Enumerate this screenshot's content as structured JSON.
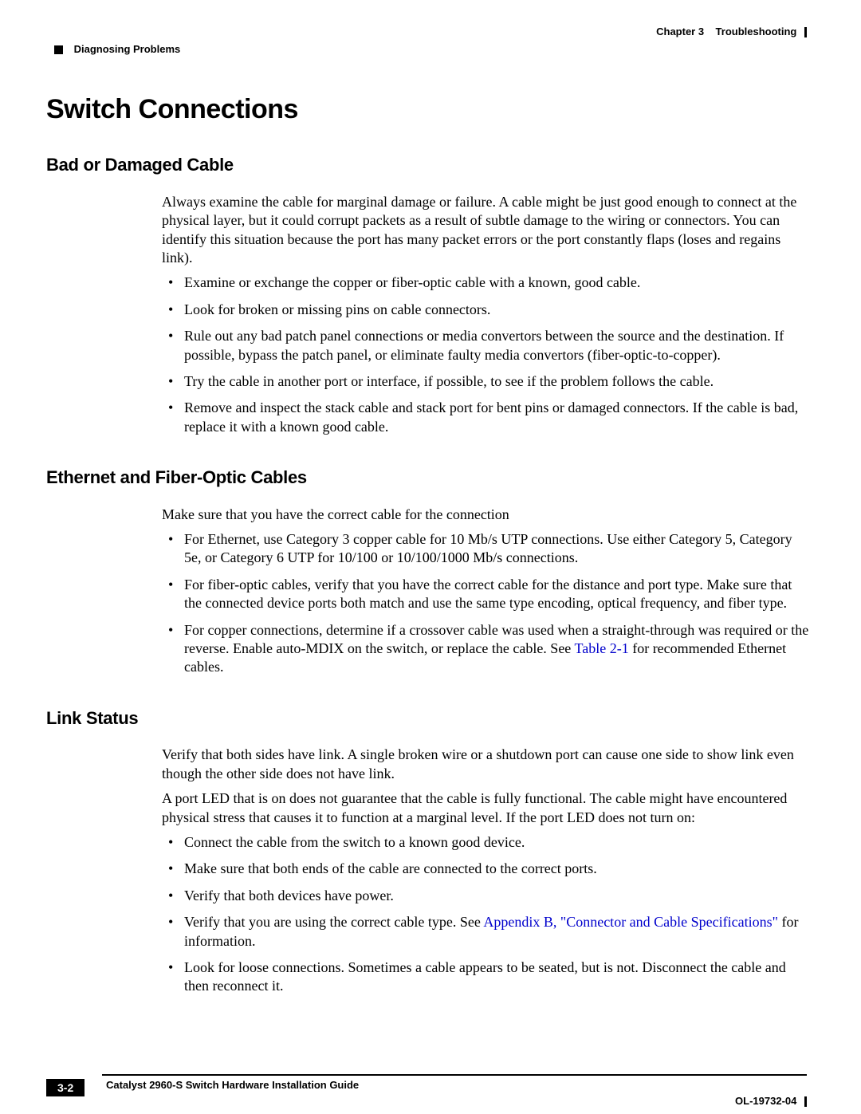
{
  "header": {
    "chapter": "Chapter 3",
    "chapterTitle": "Troubleshooting",
    "section": "Diagnosing Problems"
  },
  "main": {
    "title": "Switch Connections",
    "sections": [
      {
        "heading": "Bad or Damaged Cable",
        "intro": "Always examine the cable for marginal damage or failure. A cable might be just good enough to connect at the physical layer, but it could corrupt packets as a result of subtle damage to the wiring or connectors. You can identify this situation because the port has many packet errors or the port constantly flaps (loses and regains link).",
        "bullets": [
          "Examine or exchange the copper or fiber-optic cable with a known, good cable.",
          "Look for broken or missing pins on cable connectors.",
          "Rule out any bad patch panel connections or media convertors between the source and the destination. If possible, bypass the patch panel, or eliminate faulty media convertors (fiber-optic-to-copper).",
          "Try the cable in another port or interface, if possible, to see if the problem follows the cable.",
          "Remove and inspect the stack cable and stack port for bent pins or damaged connectors. If the cable is bad, replace it with a known good cable."
        ]
      },
      {
        "heading": "Ethernet and Fiber-Optic Cables",
        "intro": "Make sure that you have the correct cable for the connection",
        "bullets": [
          "For Ethernet, use Category 3 copper cable for 10 Mb/s UTP connections. Use either Category 5, Category 5e, or Category 6 UTP for 10/100 or 10/100/1000 Mb/s connections.",
          "For fiber-optic cables, verify that you have the correct cable for the distance and port type. Make sure that the connected device ports both match and use the same type encoding, optical frequency, and fiber type."
        ],
        "bullet3_pre": "For copper connections, determine if a crossover cable was used when a straight-through was required or the reverse. Enable auto-MDIX on the switch, or replace the cable. See ",
        "bullet3_link": "Table 2-1",
        "bullet3_post": " for recommended Ethernet cables."
      },
      {
        "heading": "Link Status",
        "para1": "Verify that both sides have link. A single broken wire or a shutdown port can cause one side to show link even though the other side does not have link.",
        "para2": "A port LED that is on does not guarantee that the cable is fully functional. The cable might have encountered physical stress that causes it to function at a marginal level. If the port LED does not turn on:",
        "bullets": [
          "Connect the cable from the switch to a known good device.",
          "Make sure that both ends of the cable are connected to the correct ports.",
          "Verify that both devices have power."
        ],
        "bullet4_pre": "Verify that you are using the correct cable type. See ",
        "bullet4_link": "Appendix B, \"Connector and Cable Specifications\"",
        "bullet4_post": " for information.",
        "bullet5": "Look for loose connections. Sometimes a cable appears to be seated, but is not. Disconnect the cable and then reconnect it."
      }
    ]
  },
  "footer": {
    "guide": "Catalyst 2960-S Switch Hardware Installation Guide",
    "page": "3-2",
    "docid": "OL-19732-04"
  }
}
